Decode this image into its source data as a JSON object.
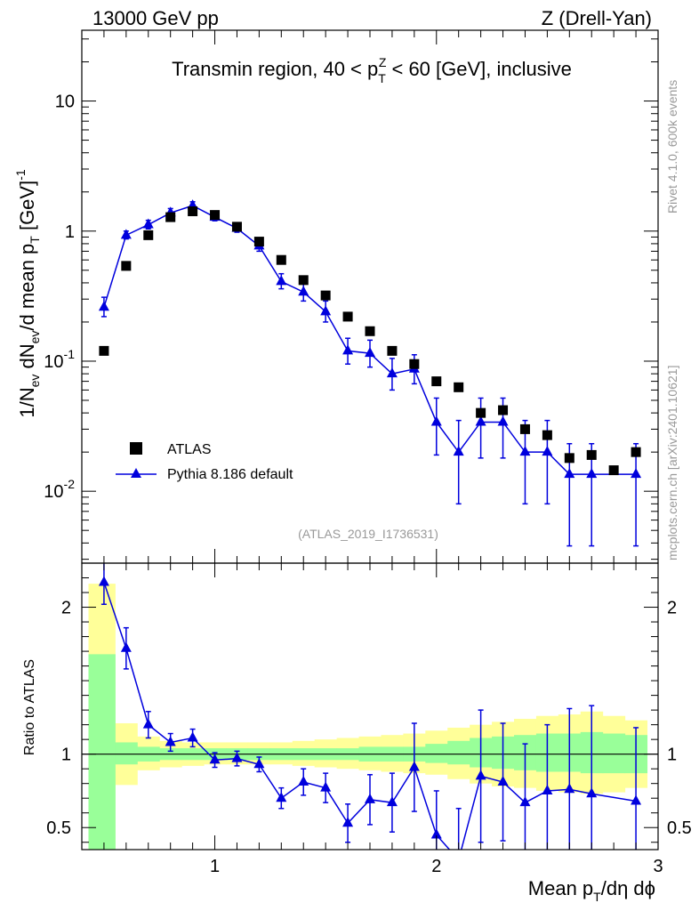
{
  "header": {
    "left": "13000 GeV pp",
    "right": "Z (Drell-Yan)",
    "subtitle": "Transmin region, 40 < pTZ < 60 [GeV], inclusive"
  },
  "side_labels": {
    "rivet": "Rivet 4.1.0,  600k events",
    "mcplots": "mcplots.cern.ch [arXiv:2401.10621]"
  },
  "analysis_id": "(ATLAS_2019_I1736531)",
  "colors": {
    "data": "#000000",
    "mc": "#0000dd",
    "band_inner": "#99ff99",
    "band_outer": "#ffff99"
  },
  "chart_data": [
    {
      "type": "scatter",
      "panel": "main",
      "ylabel": "1/Nev dNev/d mean pT [GeV]-1",
      "yscale": "log",
      "ylim": [
        0.0028,
        35
      ],
      "xlim": [
        0.4,
        3.0
      ],
      "y_tick_labels": [
        "10-2",
        "10-1",
        "1",
        "10"
      ],
      "legend": [
        "ATLAS",
        "Pythia 8.186 default"
      ],
      "legend_position": "bottom-left",
      "series": [
        {
          "name": "ATLAS",
          "marker": "square",
          "x": [
            0.5,
            0.6,
            0.7,
            0.8,
            0.9,
            1.0,
            1.1,
            1.2,
            1.3,
            1.4,
            1.5,
            1.6,
            1.7,
            1.8,
            1.9,
            2.0,
            2.1,
            2.2,
            2.3,
            2.4,
            2.5,
            2.6,
            2.7,
            2.8,
            2.9
          ],
          "y": [
            0.12,
            0.54,
            0.93,
            1.28,
            1.42,
            1.33,
            1.08,
            0.83,
            0.6,
            0.42,
            0.32,
            0.22,
            0.17,
            0.12,
            0.095,
            0.07,
            0.063,
            0.04,
            0.042,
            0.03,
            0.027,
            0.018,
            0.019,
            0.0145,
            0.02
          ]
        },
        {
          "name": "Pythia 8.186 default",
          "marker": "triangle",
          "x": [
            0.5,
            0.6,
            0.7,
            0.8,
            0.9,
            1.0,
            1.1,
            1.2,
            1.3,
            1.4,
            1.5,
            1.6,
            1.7,
            1.8,
            1.9,
            2.0,
            2.1,
            2.2,
            2.3,
            2.4,
            2.5,
            2.6,
            2.7,
            2.9
          ],
          "y": [
            0.26,
            0.93,
            1.12,
            1.38,
            1.57,
            1.28,
            1.05,
            0.77,
            0.41,
            0.34,
            0.24,
            0.12,
            0.115,
            0.08,
            0.087,
            0.034,
            0.02,
            0.034,
            0.034,
            0.02,
            0.02,
            0.0135,
            0.0135,
            0.0135
          ],
          "err_lo": [
            0.04,
            0.06,
            0.08,
            0.1,
            0.1,
            0.08,
            0.07,
            0.07,
            0.05,
            0.05,
            0.04,
            0.025,
            0.025,
            0.02,
            0.02,
            0.015,
            0.012,
            0.016,
            0.016,
            0.012,
            0.012,
            0.0097,
            0.0097,
            0.0097
          ],
          "err_hi": [
            0.05,
            0.07,
            0.09,
            0.11,
            0.11,
            0.09,
            0.08,
            0.08,
            0.06,
            0.06,
            0.05,
            0.03,
            0.03,
            0.025,
            0.025,
            0.018,
            0.015,
            0.018,
            0.018,
            0.015,
            0.015,
            0.0097,
            0.0097,
            0.0097
          ]
        }
      ]
    },
    {
      "type": "line",
      "panel": "ratio",
      "ylabel": "Ratio to ATLAS",
      "xlabel": "Mean pT/dη dϕ",
      "ylim": [
        0.35,
        2.3
      ],
      "xlim": [
        0.4,
        3.0
      ],
      "x_tick_labels": [
        "1",
        "2",
        "3"
      ],
      "y_tick_labels": [
        "0.5",
        "1",
        "2"
      ],
      "bands": {
        "edges": [
          0.43,
          0.55,
          0.65,
          0.75,
          0.85,
          0.95,
          1.05,
          1.15,
          1.25,
          1.35,
          1.45,
          1.55,
          1.65,
          1.75,
          1.85,
          1.95,
          2.05,
          2.15,
          2.25,
          2.35,
          2.45,
          2.55,
          2.65,
          2.75,
          2.85,
          2.95
        ],
        "inner_lo": [
          0.35,
          0.93,
          0.95,
          0.96,
          0.96,
          0.96,
          0.96,
          0.96,
          0.96,
          0.96,
          0.96,
          0.96,
          0.95,
          0.95,
          0.95,
          0.94,
          0.93,
          0.91,
          0.9,
          0.89,
          0.88,
          0.88,
          0.87,
          0.87,
          0.87
        ],
        "inner_hi": [
          1.68,
          1.08,
          1.05,
          1.04,
          1.04,
          1.04,
          1.04,
          1.04,
          1.04,
          1.04,
          1.04,
          1.04,
          1.05,
          1.05,
          1.05,
          1.07,
          1.09,
          1.11,
          1.12,
          1.13,
          1.14,
          1.14,
          1.15,
          1.14,
          1.13
        ],
        "outer_lo": [
          0.35,
          0.79,
          0.89,
          0.91,
          0.92,
          0.93,
          0.93,
          0.93,
          0.93,
          0.92,
          0.91,
          0.9,
          0.89,
          0.88,
          0.87,
          0.86,
          0.83,
          0.8,
          0.78,
          0.77,
          0.75,
          0.74,
          0.73,
          0.74,
          0.77
        ],
        "outer_hi": [
          2.16,
          1.21,
          1.12,
          1.09,
          1.08,
          1.08,
          1.08,
          1.08,
          1.08,
          1.09,
          1.1,
          1.11,
          1.12,
          1.13,
          1.14,
          1.16,
          1.18,
          1.2,
          1.22,
          1.24,
          1.26,
          1.27,
          1.29,
          1.26,
          1.23
        ]
      },
      "series": [
        {
          "name": "Pythia 8.186 default / ATLAS",
          "x": [
            0.5,
            0.6,
            0.7,
            0.8,
            0.9,
            1.0,
            1.1,
            1.2,
            1.3,
            1.4,
            1.5,
            1.6,
            1.7,
            1.8,
            1.9,
            2.0,
            2.1,
            2.2,
            2.3,
            2.4,
            2.5,
            2.6,
            2.7,
            2.9
          ],
          "y": [
            2.17,
            1.72,
            1.2,
            1.08,
            1.11,
            0.96,
            0.97,
            0.93,
            0.7,
            0.81,
            0.77,
            0.53,
            0.69,
            0.67,
            0.91,
            0.45,
            0.28,
            0.85,
            0.81,
            0.67,
            0.75,
            0.76,
            0.73,
            0.68
          ],
          "err_lo": [
            0.15,
            0.14,
            0.09,
            0.06,
            0.06,
            0.05,
            0.05,
            0.05,
            0.07,
            0.09,
            0.1,
            0.13,
            0.17,
            0.2,
            0.3,
            0.25,
            0.3,
            0.45,
            0.4,
            0.4,
            0.45,
            0.55,
            0.6,
            0.6
          ],
          "err_hi": [
            0.15,
            0.14,
            0.09,
            0.06,
            0.06,
            0.05,
            0.05,
            0.05,
            0.07,
            0.09,
            0.1,
            0.13,
            0.17,
            0.2,
            0.3,
            0.3,
            0.35,
            0.45,
            0.4,
            0.4,
            0.45,
            0.55,
            0.6,
            0.5
          ]
        }
      ]
    }
  ]
}
